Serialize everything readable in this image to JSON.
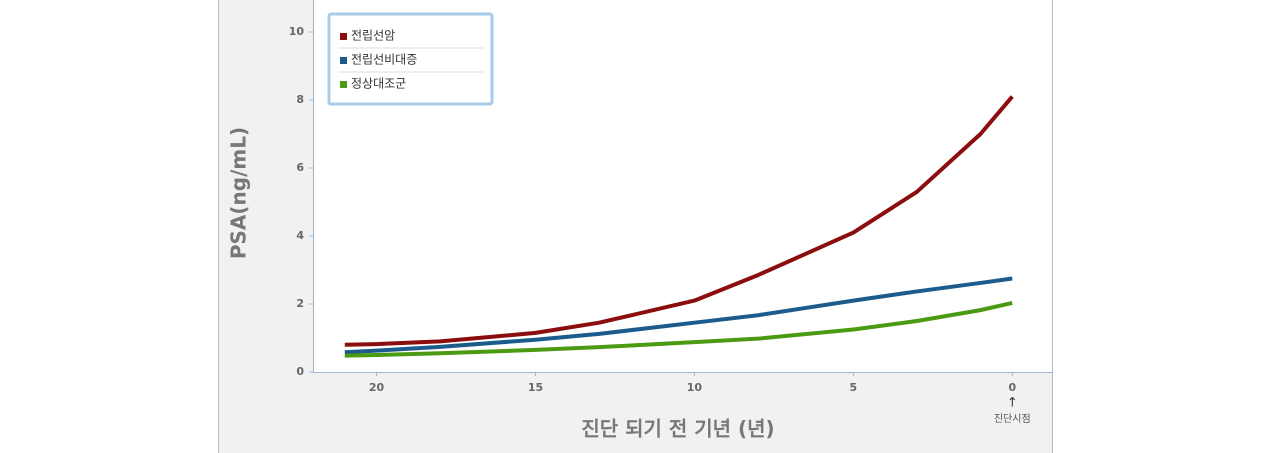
{
  "chart_data": {
    "type": "line",
    "x_label": "진단 되기 전 기년 (년)",
    "y_label": "PSA(ng/mL)",
    "annotation": "진단시점",
    "annotation_arrow": "↑",
    "x": [
      21,
      20,
      18,
      15,
      13,
      10,
      8,
      5,
      3,
      1,
      0
    ],
    "series": [
      {
        "name": "전립선암",
        "color": "#8b0d0d",
        "values": [
          0.8,
          0.82,
          0.9,
          1.15,
          1.45,
          2.1,
          2.85,
          4.1,
          5.3,
          7.0,
          8.1
        ]
      },
      {
        "name": "전립선비대증",
        "color": "#1c5c8c",
        "values": [
          0.58,
          0.63,
          0.74,
          0.95,
          1.12,
          1.45,
          1.67,
          2.1,
          2.37,
          2.62,
          2.75
        ]
      },
      {
        "name": "정상대조군",
        "color": "#4a9a12",
        "values": [
          0.48,
          0.5,
          0.55,
          0.65,
          0.73,
          0.88,
          0.98,
          1.25,
          1.5,
          1.82,
          2.03
        ]
      }
    ],
    "xlim": [
      22,
      -1.25
    ],
    "xticks": [
      20,
      15,
      10,
      5,
      0
    ],
    "ylim": [
      0,
      11
    ],
    "yticks": [
      0,
      2,
      4,
      6,
      8,
      10
    ],
    "legend": "upper left"
  }
}
